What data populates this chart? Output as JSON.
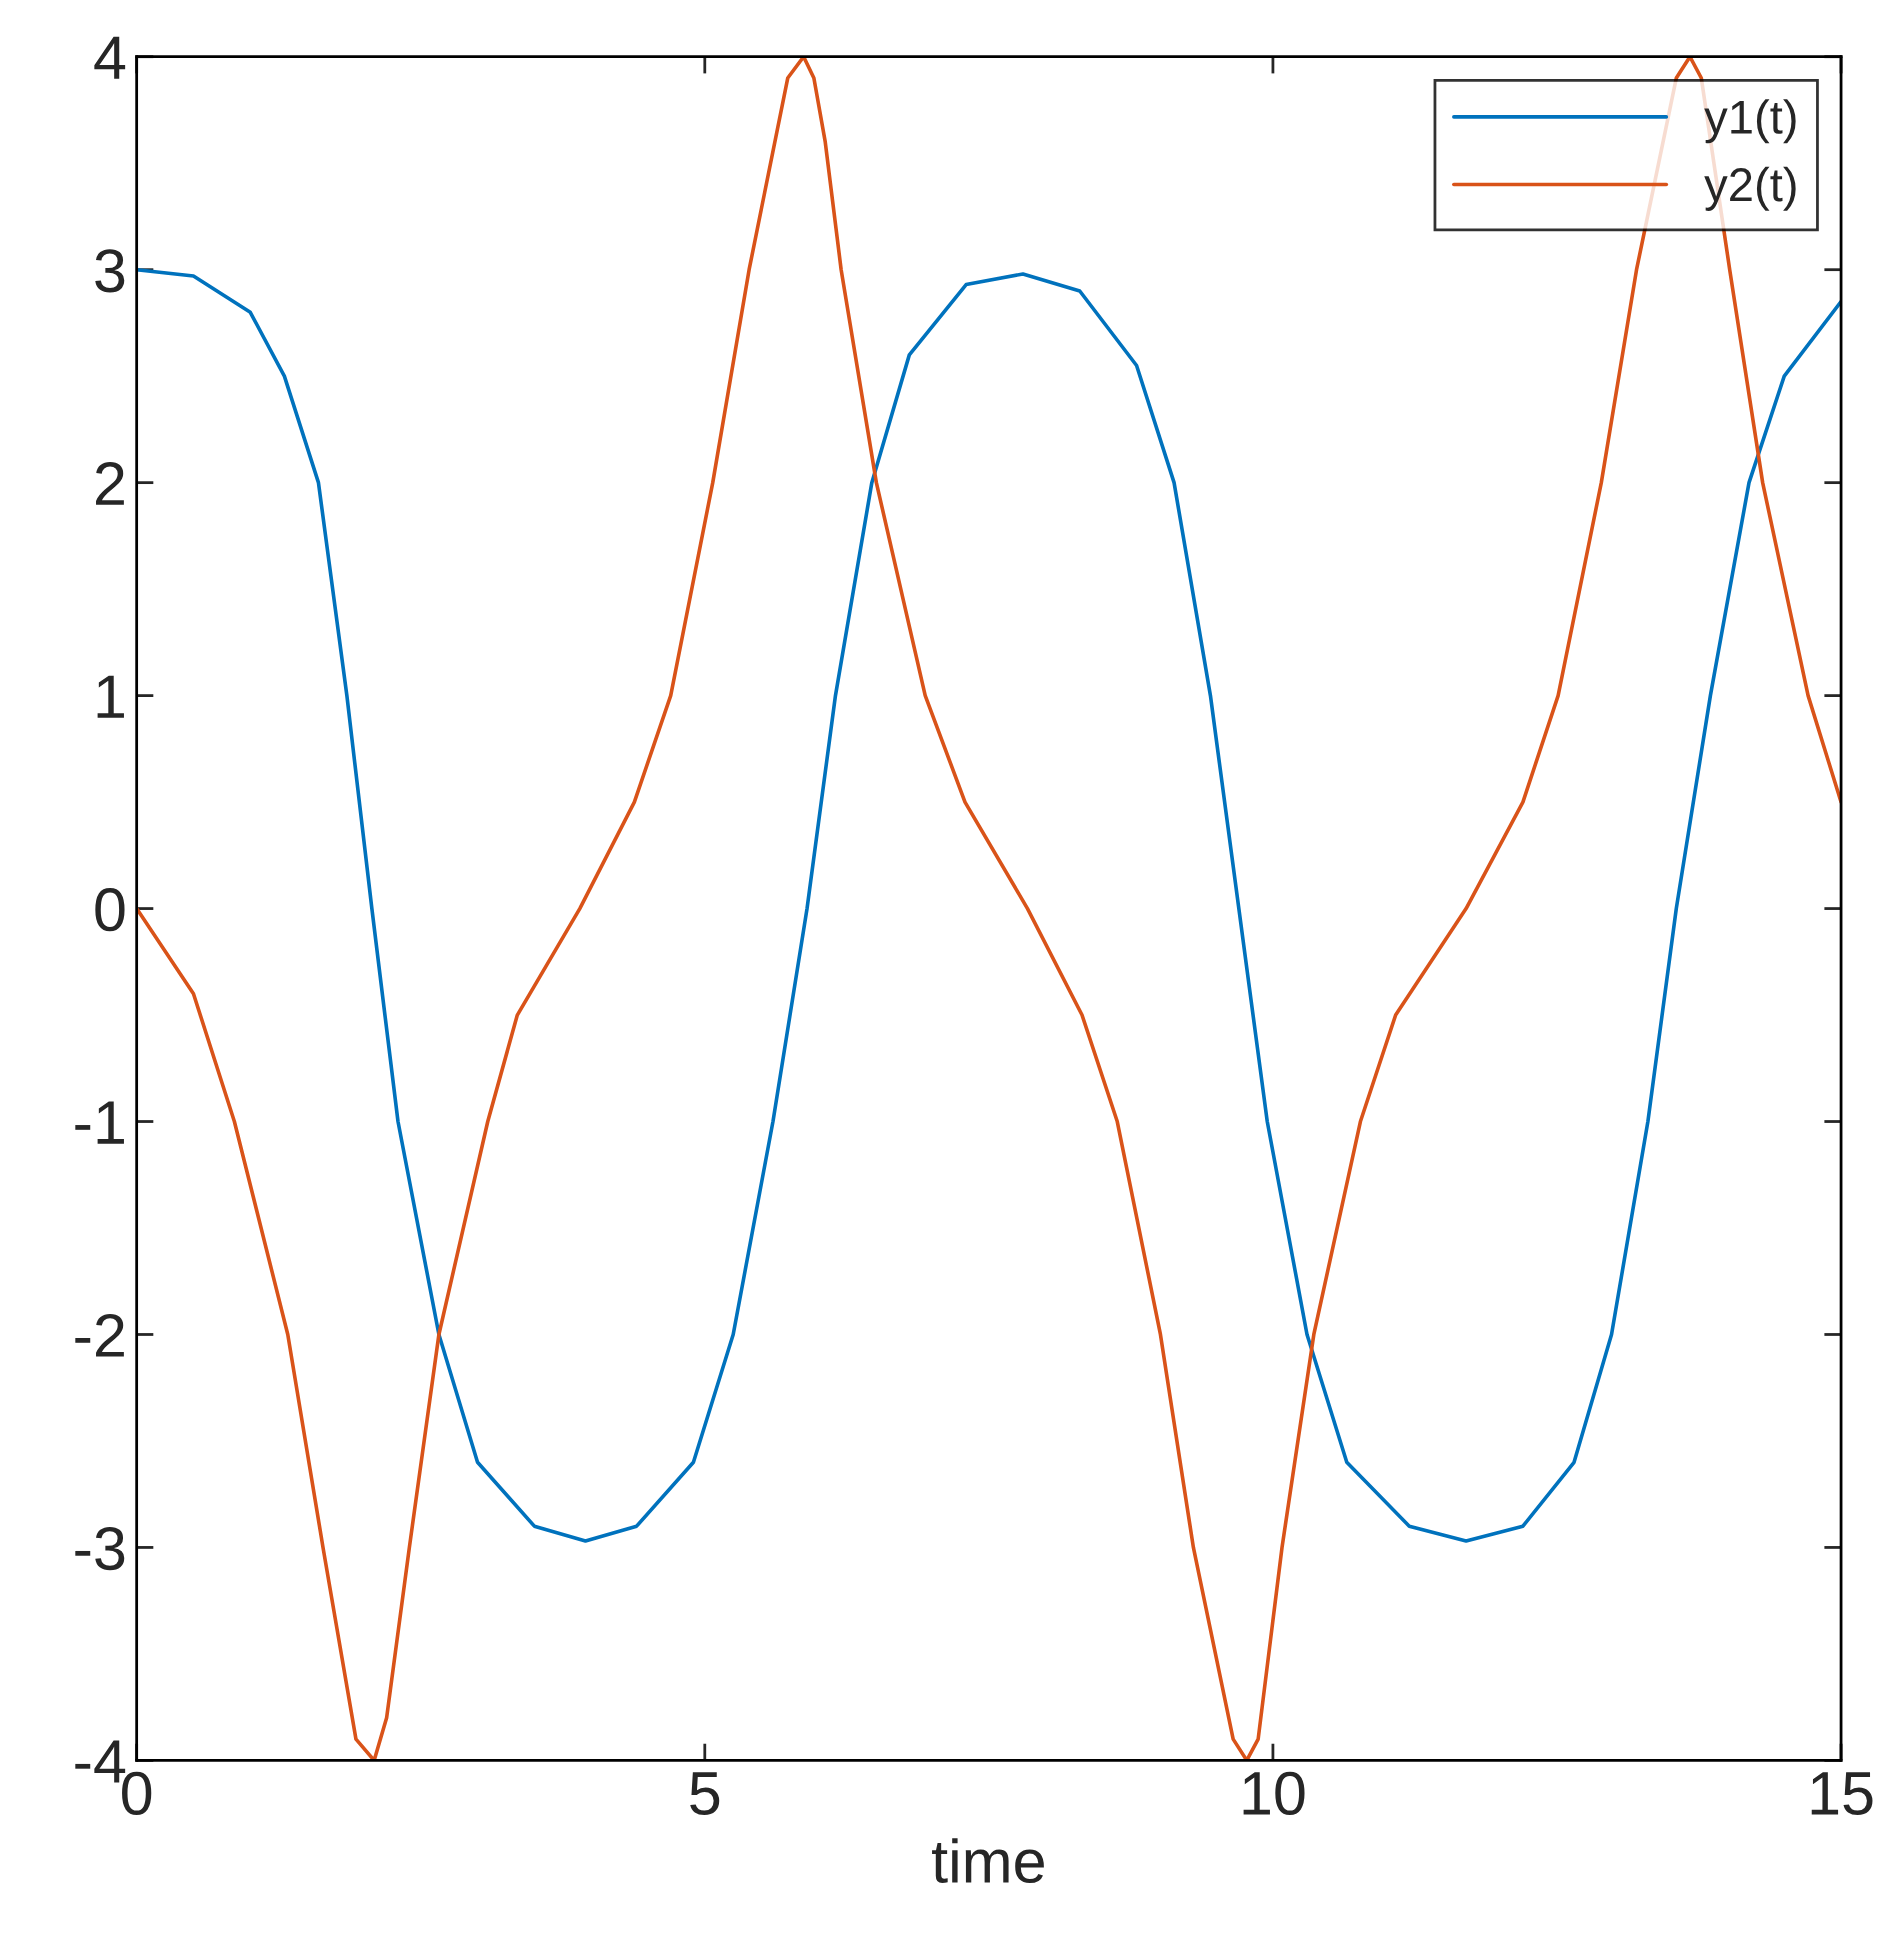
{
  "chart_data": {
    "type": "line",
    "xlabel": "time",
    "xlim": [
      0,
      15
    ],
    "ylim": [
      -4,
      4
    ],
    "xticks": [
      0,
      5,
      10,
      15
    ],
    "yticks": [
      -4,
      -3,
      -2,
      -1,
      0,
      1,
      2,
      3,
      4
    ],
    "grid": false,
    "legend": "top right",
    "marker": "none",
    "line_style": "solid",
    "series": [
      {
        "name": "y1(t)",
        "color": "#0072bd",
        "x": [
          0,
          0.5,
          1.0,
          1.3,
          1.6,
          1.85,
          2.07,
          2.3,
          2.66,
          3.0,
          3.5,
          3.95,
          4.4,
          4.9,
          5.25,
          5.6,
          5.9,
          6.15,
          6.47,
          6.8,
          7.3,
          7.8,
          8.3,
          8.8,
          9.13,
          9.45,
          9.7,
          9.95,
          10.3,
          10.65,
          11.2,
          11.7,
          12.2,
          12.65,
          12.98,
          13.3,
          13.55,
          13.85,
          14.19,
          14.5,
          15
        ],
        "values": [
          3.0,
          2.97,
          2.8,
          2.5,
          2.0,
          1.0,
          0,
          -1.0,
          -2,
          -2.6,
          -2.9,
          -2.97,
          -2.9,
          -2.6,
          -2,
          -1,
          0,
          1,
          2,
          2.6,
          2.93,
          2.98,
          2.9,
          2.55,
          2.0,
          1,
          0,
          -1,
          -2,
          -2.6,
          -2.9,
          -2.97,
          -2.9,
          -2.6,
          -2,
          -1,
          0,
          1,
          2,
          2.5,
          2.85
        ]
      },
      {
        "name": "y2(t)",
        "color": "#d95319",
        "x": [
          0,
          0.5,
          0.86,
          1.33,
          1.64,
          1.93,
          2.09,
          2.2,
          2.4,
          2.66,
          3.09,
          3.35,
          3.9,
          4.38,
          4.7,
          5.07,
          5.39,
          5.73,
          5.87,
          5.96,
          6.06,
          6.2,
          6.51,
          6.94,
          7.29,
          7.84,
          8.32,
          8.63,
          9.01,
          9.3,
          9.65,
          9.77,
          9.87,
          10.08,
          10.36,
          10.77,
          11.08,
          11.7,
          12.2,
          12.51,
          12.89,
          13.2,
          13.55,
          13.67,
          13.77,
          14.02,
          14.31,
          14.71,
          15
        ],
        "values": [
          0,
          -0.4,
          -1,
          -2,
          -3,
          -3.9,
          -4,
          -3.8,
          -3,
          -2,
          -1,
          -0.5,
          0,
          0.5,
          1,
          2,
          3,
          3.9,
          4,
          3.9,
          3.6,
          3,
          2,
          1,
          0.5,
          0,
          -0.5,
          -1,
          -2,
          -3,
          -3.9,
          -4,
          -3.9,
          -3,
          -2,
          -1,
          -0.5,
          0,
          0.5,
          1,
          2,
          3,
          3.9,
          4,
          3.9,
          3,
          2,
          1,
          0.5
        ]
      }
    ]
  }
}
